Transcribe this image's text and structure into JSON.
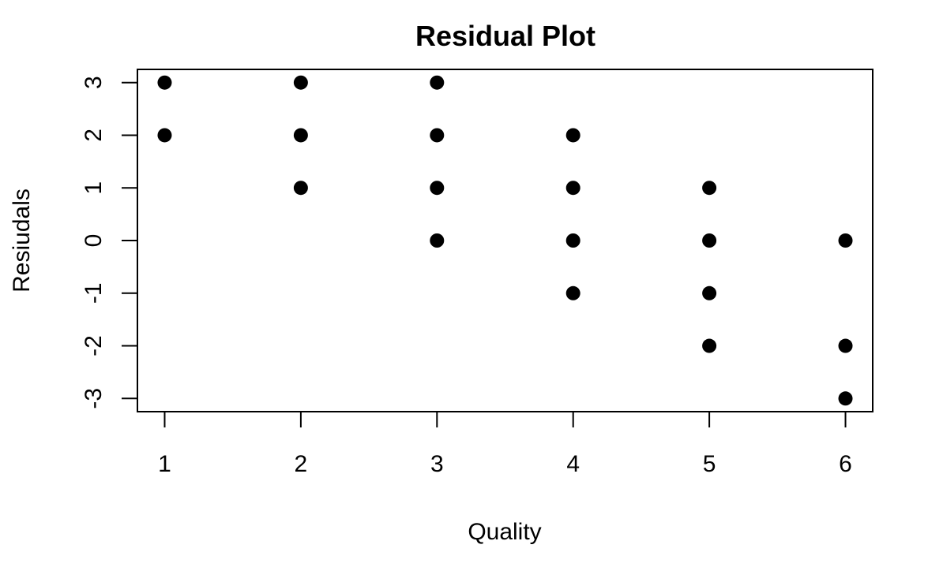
{
  "chart_data": {
    "type": "scatter",
    "title": "Residual Plot",
    "xlabel": "Quality",
    "ylabel": "Resiudals",
    "xlim": [
      0.8,
      6.2
    ],
    "ylim": [
      -3.25,
      3.25
    ],
    "xticks": [
      1,
      2,
      3,
      4,
      5,
      6
    ],
    "yticks": [
      -3,
      -2,
      -1,
      0,
      1,
      2,
      3
    ],
    "grid": false,
    "marker_color": "#000000",
    "points": [
      {
        "x": 1,
        "y": 3
      },
      {
        "x": 1,
        "y": 2
      },
      {
        "x": 2,
        "y": 3
      },
      {
        "x": 2,
        "y": 2
      },
      {
        "x": 2,
        "y": 1
      },
      {
        "x": 3,
        "y": 3
      },
      {
        "x": 3,
        "y": 2
      },
      {
        "x": 3,
        "y": 1
      },
      {
        "x": 3,
        "y": 0
      },
      {
        "x": 4,
        "y": 2
      },
      {
        "x": 4,
        "y": 1
      },
      {
        "x": 4,
        "y": 0
      },
      {
        "x": 4,
        "y": -1
      },
      {
        "x": 5,
        "y": 1
      },
      {
        "x": 5,
        "y": 0
      },
      {
        "x": 5,
        "y": -1
      },
      {
        "x": 5,
        "y": -2
      },
      {
        "x": 6,
        "y": 0
      },
      {
        "x": 6,
        "y": -2
      },
      {
        "x": 6,
        "y": -3
      }
    ]
  }
}
